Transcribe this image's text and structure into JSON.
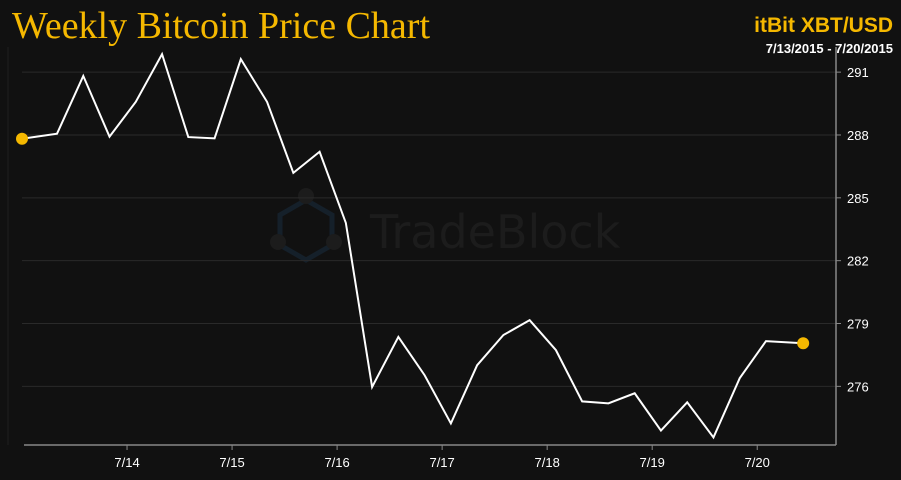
{
  "chart_data": {
    "type": "line",
    "title": "Weekly Bitcoin Price Chart",
    "source_label": "itBit XBT/USD",
    "date_range": "7/13/2015 - 7/20/2015",
    "watermark": "TradeBlock",
    "xlabel": "",
    "ylabel": "",
    "y_axis_side": "right",
    "ylim": [
      273.2,
      292.2
    ],
    "xlim": [
      "2015-07-13T00:00",
      "2015-07-20T18:00"
    ],
    "y_ticks": [
      276,
      279,
      282,
      285,
      288,
      291
    ],
    "x_ticks": [
      {
        "date": "2015-07-14",
        "label": "7/14"
      },
      {
        "date": "2015-07-15",
        "label": "7/15"
      },
      {
        "date": "2015-07-16",
        "label": "7/16"
      },
      {
        "date": "2015-07-17",
        "label": "7/17"
      },
      {
        "date": "2015-07-18",
        "label": "7/18"
      },
      {
        "date": "2015-07-19",
        "label": "7/19"
      },
      {
        "date": "2015-07-20",
        "label": "7/20"
      }
    ],
    "grid": "horizontal",
    "colors": {
      "line": "#ffffff",
      "marker": "#f5b800",
      "title": "#f5b800",
      "background": "#111111",
      "grid": "#2a2a2a"
    },
    "x": [
      "2015-07-13T00:00",
      "2015-07-13T08:00",
      "2015-07-13T14:00",
      "2015-07-13T20:00",
      "2015-07-14T02:00",
      "2015-07-14T08:00",
      "2015-07-14T14:00",
      "2015-07-14T20:00",
      "2015-07-15T02:00",
      "2015-07-15T08:00",
      "2015-07-15T14:00",
      "2015-07-15T20:00",
      "2015-07-16T02:00",
      "2015-07-16T08:00",
      "2015-07-16T14:00",
      "2015-07-16T20:00",
      "2015-07-17T02:00",
      "2015-07-17T08:00",
      "2015-07-17T14:00",
      "2015-07-17T20:00",
      "2015-07-18T02:00",
      "2015-07-18T08:00",
      "2015-07-18T14:00",
      "2015-07-18T20:00",
      "2015-07-19T02:00",
      "2015-07-19T08:00",
      "2015-07-19T14:00",
      "2015-07-19T20:00",
      "2015-07-20T02:00",
      "2015-07-20T10:30"
    ],
    "values": [
      287.82,
      288.06,
      290.82,
      287.92,
      289.58,
      291.86,
      287.9,
      287.84,
      291.62,
      289.58,
      286.19,
      287.2,
      283.8,
      275.97,
      278.36,
      276.53,
      274.23,
      277.01,
      278.45,
      279.16,
      277.73,
      275.28,
      275.19,
      275.67,
      273.89,
      275.24,
      273.56,
      276.39,
      278.16,
      278.06
    ],
    "endpoint_markers": true
  }
}
